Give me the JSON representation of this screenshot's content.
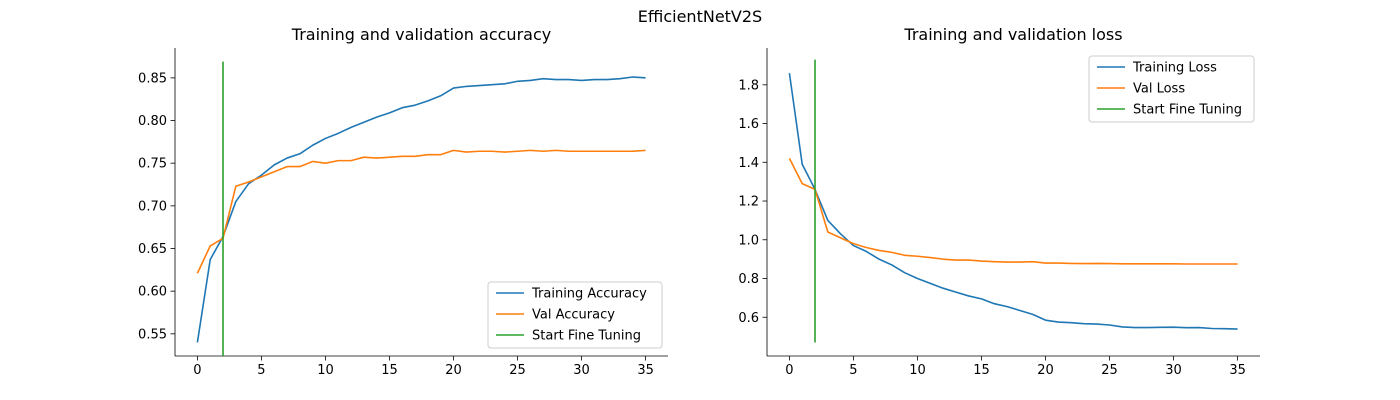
{
  "figure": {
    "title": "EfficientNetV2S"
  },
  "colors": {
    "training": "#1f77b4",
    "validation": "#ff7f0e",
    "fine_tuning": "#2ca02c"
  },
  "chart_data": [
    {
      "type": "line",
      "title": "Training and validation accuracy",
      "xlabel": "",
      "ylabel": "",
      "xlim": [
        -1.75,
        36.75
      ],
      "ylim": [
        0.524,
        0.885
      ],
      "xticks": [
        0,
        5,
        10,
        15,
        20,
        25,
        30,
        35
      ],
      "yticks": [
        0.55,
        0.6,
        0.65,
        0.7,
        0.75,
        0.8,
        0.85
      ],
      "grid": false,
      "legend_position": "lower-right",
      "x": [
        0,
        1,
        2,
        3,
        4,
        5,
        6,
        7,
        8,
        9,
        10,
        11,
        12,
        13,
        14,
        15,
        16,
        17,
        18,
        19,
        20,
        21,
        22,
        23,
        24,
        25,
        26,
        27,
        28,
        29,
        30,
        31,
        32,
        33,
        34,
        35
      ],
      "series": [
        {
          "name": "Training Accuracy",
          "color": "#1f77b4",
          "values": [
            0.54,
            0.637,
            0.664,
            0.705,
            0.726,
            0.736,
            0.748,
            0.756,
            0.761,
            0.771,
            0.779,
            0.785,
            0.792,
            0.798,
            0.804,
            0.809,
            0.815,
            0.818,
            0.823,
            0.829,
            0.838,
            0.84,
            0.841,
            0.842,
            0.843,
            0.846,
            0.847,
            0.849,
            0.848,
            0.848,
            0.847,
            0.848,
            0.848,
            0.849,
            0.851,
            0.85
          ]
        },
        {
          "name": "Val Accuracy",
          "color": "#ff7f0e",
          "values": [
            0.621,
            0.653,
            0.662,
            0.723,
            0.728,
            0.734,
            0.74,
            0.746,
            0.746,
            0.752,
            0.75,
            0.753,
            0.753,
            0.757,
            0.756,
            0.757,
            0.758,
            0.758,
            0.76,
            0.76,
            0.765,
            0.763,
            0.764,
            0.764,
            0.763,
            0.764,
            0.765,
            0.764,
            0.765,
            0.764,
            0.764,
            0.764,
            0.764,
            0.764,
            0.764,
            0.765
          ]
        }
      ],
      "vline": {
        "name": "Start Fine Tuning",
        "x": 2,
        "ymin": 0.524,
        "ymax": 0.869,
        "color": "#2ca02c"
      }
    },
    {
      "type": "line",
      "title": "Training and validation loss",
      "xlabel": "",
      "ylabel": "",
      "xlim": [
        -1.75,
        36.75
      ],
      "ylim": [
        0.4,
        1.99
      ],
      "xticks": [
        0,
        5,
        10,
        15,
        20,
        25,
        30,
        35
      ],
      "yticks": [
        0.6,
        0.8,
        1.0,
        1.2,
        1.4,
        1.6,
        1.8
      ],
      "grid": false,
      "legend_position": "upper-right",
      "x": [
        0,
        1,
        2,
        3,
        4,
        5,
        6,
        7,
        8,
        9,
        10,
        11,
        12,
        13,
        14,
        15,
        16,
        17,
        18,
        19,
        20,
        21,
        22,
        23,
        24,
        25,
        26,
        27,
        28,
        29,
        30,
        31,
        32,
        33,
        34,
        35
      ],
      "series": [
        {
          "name": "Training Loss",
          "color": "#1f77b4",
          "values": [
            1.86,
            1.39,
            1.26,
            1.1,
            1.03,
            0.97,
            0.94,
            0.9,
            0.87,
            0.83,
            0.8,
            0.775,
            0.75,
            0.73,
            0.71,
            0.695,
            0.67,
            0.655,
            0.635,
            0.615,
            0.585,
            0.575,
            0.572,
            0.567,
            0.565,
            0.56,
            0.55,
            0.547,
            0.547,
            0.548,
            0.549,
            0.546,
            0.547,
            0.542,
            0.541,
            0.539
          ]
        },
        {
          "name": "Val Loss",
          "color": "#ff7f0e",
          "values": [
            1.42,
            1.29,
            1.26,
            1.04,
            1.01,
            0.98,
            0.96,
            0.945,
            0.935,
            0.92,
            0.915,
            0.908,
            0.9,
            0.895,
            0.895,
            0.89,
            0.887,
            0.885,
            0.885,
            0.887,
            0.88,
            0.88,
            0.878,
            0.877,
            0.878,
            0.877,
            0.876,
            0.876,
            0.876,
            0.876,
            0.876,
            0.875,
            0.875,
            0.875,
            0.875,
            0.875
          ]
        }
      ],
      "vline": {
        "name": "Start Fine Tuning",
        "x": 2,
        "ymin": 0.47,
        "ymax": 1.93,
        "color": "#2ca02c"
      }
    }
  ]
}
